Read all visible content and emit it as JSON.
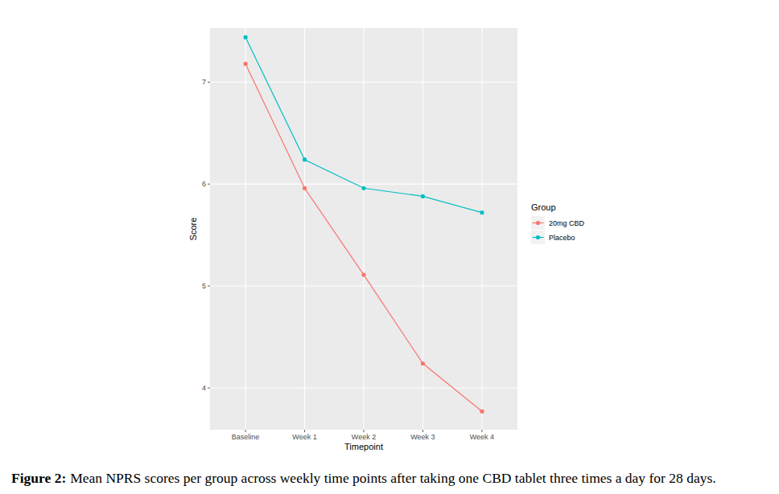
{
  "chart_data": {
    "type": "line",
    "x_label": "Timepoint",
    "y_label": "Score",
    "legend_title": "Group",
    "figure_label": "Figure 2:",
    "caption": "Mean NPRS scores per group across weekly time points after taking one CBD tablet three times a day for 28 days.",
    "categories": [
      "Baseline",
      "Week 1",
      "Week 2",
      "Week 3",
      "Week 4"
    ],
    "series": [
      {
        "name": "20mg CBD",
        "color": "#F8766D",
        "values": [
          7.18,
          5.96,
          5.11,
          4.24,
          3.77
        ]
      },
      {
        "name": "Placebo",
        "color": "#00BFC4",
        "values": [
          7.44,
          6.24,
          5.96,
          5.88,
          5.72
        ]
      }
    ],
    "ylim": [
      3.59,
      7.53
    ],
    "yticks": [
      4,
      5,
      6,
      7
    ],
    "grid": true,
    "legend": "right",
    "marker": "circle"
  }
}
